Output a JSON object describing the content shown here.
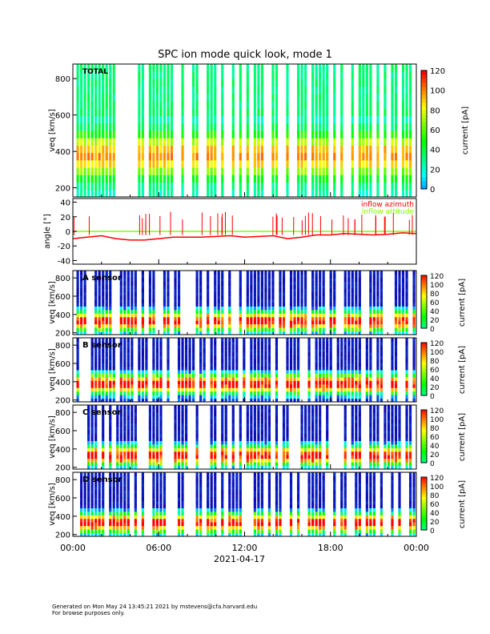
{
  "chart_data": {
    "title": "SPC ion mode quick look, mode 1",
    "x_axis": {
      "ticks": [
        "00:00",
        "06:00",
        "12:00",
        "18:00",
        "00:00"
      ],
      "date_label": "2021-04-17",
      "range_hours": [
        0,
        24
      ]
    },
    "panels": [
      {
        "type": "heatmap",
        "label": "TOTAL",
        "ylabel": "v_eq [km/s]",
        "yticks": [
          200,
          400,
          600,
          800
        ],
        "ylim": [
          150,
          880
        ],
        "colorbar_label": "current [pA]",
        "colorbar_ticks": [
          0,
          20,
          40,
          60,
          80,
          100,
          120
        ],
        "clim": [
          0,
          120
        ],
        "colormap": "rainbow",
        "peak_speed_kms": 380
      },
      {
        "type": "line",
        "ylabel": "angle [°]",
        "yticks": [
          -40,
          -20,
          0,
          20,
          40
        ],
        "ylim": [
          -45,
          45
        ],
        "series": [
          {
            "name": "inflow azimuth",
            "color": "#ff0000",
            "x_hours": [
              0,
              1,
              2,
              3,
              4,
              5,
              6,
              7,
              8,
              9,
              10,
              11,
              12,
              13,
              14,
              15,
              16,
              17,
              18,
              19,
              20,
              21,
              22,
              23,
              24
            ],
            "values": [
              -10,
              -8,
              -6,
              -10,
              -12,
              -12,
              -10,
              -8,
              -8,
              -8,
              -7,
              -6,
              -8,
              -7,
              -6,
              -10,
              -8,
              -5,
              -5,
              -3,
              -4,
              -5,
              -4,
              -2,
              -3
            ]
          },
          {
            "name": "inflow attitude",
            "color": "#80ff00",
            "x_hours": [
              0,
              6,
              12,
              18,
              24
            ],
            "values": [
              0,
              0,
              0,
              0,
              0
            ]
          }
        ]
      },
      {
        "type": "heatmap",
        "label": "A sensor",
        "ylabel": "v_eq [km/s]",
        "yticks": [
          200,
          400,
          600,
          800
        ],
        "ylim": [
          180,
          880
        ],
        "colorbar_label": "current [pA]",
        "colorbar_ticks": [
          0,
          20,
          40,
          60,
          80,
          100,
          120
        ],
        "peak_speed_kms": 330
      },
      {
        "type": "heatmap",
        "label": "B sensor",
        "ylabel": "v_eq [km/s]",
        "yticks": [
          200,
          400,
          600,
          800
        ],
        "ylim": [
          180,
          880
        ],
        "colorbar_label": "current [pA]",
        "colorbar_ticks": [
          0,
          20,
          40,
          60,
          80,
          100,
          120
        ],
        "peak_speed_kms": 380
      },
      {
        "type": "heatmap",
        "label": "C sensor",
        "ylabel": "v_eq [km/s]",
        "yticks": [
          200,
          400,
          600,
          800
        ],
        "ylim": [
          180,
          880
        ],
        "colorbar_label": "current [pA]",
        "colorbar_ticks": [
          0,
          20,
          40,
          60,
          80,
          100,
          120
        ],
        "peak_speed_kms": 330
      },
      {
        "type": "heatmap",
        "label": "D sensor",
        "ylabel": "v_eq [km/s]",
        "yticks": [
          200,
          400,
          600,
          800
        ],
        "ylim": [
          180,
          880
        ],
        "colorbar_label": "current [pA]",
        "colorbar_ticks": [
          0,
          20,
          40,
          60,
          80,
          100,
          120
        ],
        "peak_speed_kms": 330
      }
    ]
  },
  "footer": {
    "line1": "Generated on Mon May 24 13:45:21 2021 by mstevens@cfa.harvard.edu",
    "line2": "For browse purposes only."
  }
}
